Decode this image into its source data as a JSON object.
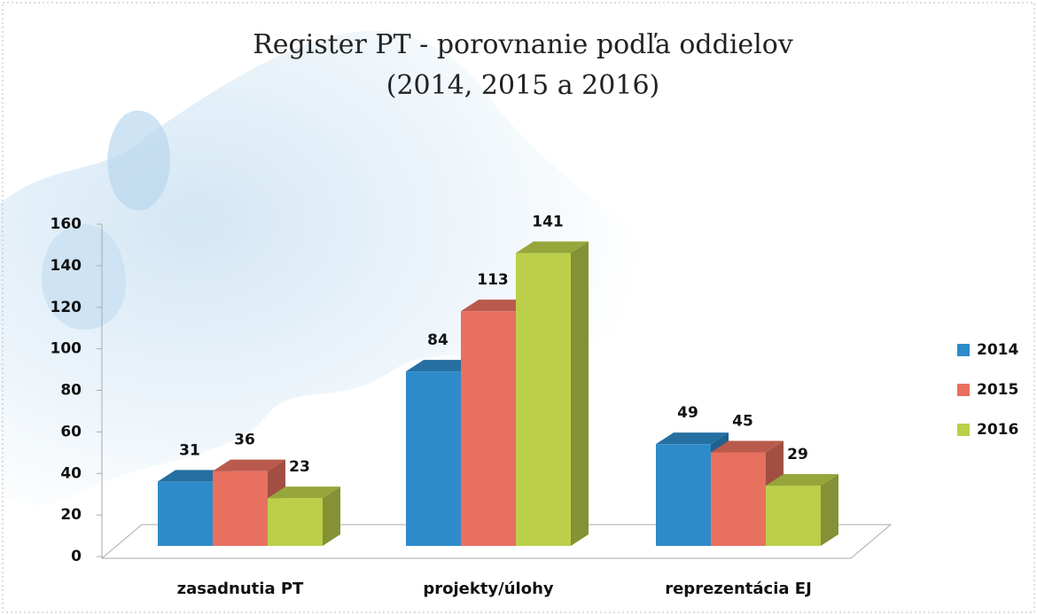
{
  "chart_data": {
    "type": "bar3d",
    "title": "Register PT - porovnanie podľa oddielov",
    "subtitle": "(2014, 2015 a 2016)",
    "categories": [
      "zasadnutia PT",
      "projekty/úlohy",
      "reprezentácia EJ"
    ],
    "series": [
      {
        "name": "2014",
        "color": "#2e8bc9",
        "values": [
          31,
          84,
          49
        ]
      },
      {
        "name": "2015",
        "color": "#e8705f",
        "values": [
          36,
          113,
          45
        ]
      },
      {
        "name": "2016",
        "color": "#bccf4a",
        "values": [
          23,
          141,
          29
        ]
      }
    ],
    "ylim": [
      0,
      160
    ],
    "yticks": [
      0,
      20,
      40,
      60,
      80,
      100,
      120,
      140,
      160
    ],
    "legend": "right"
  }
}
